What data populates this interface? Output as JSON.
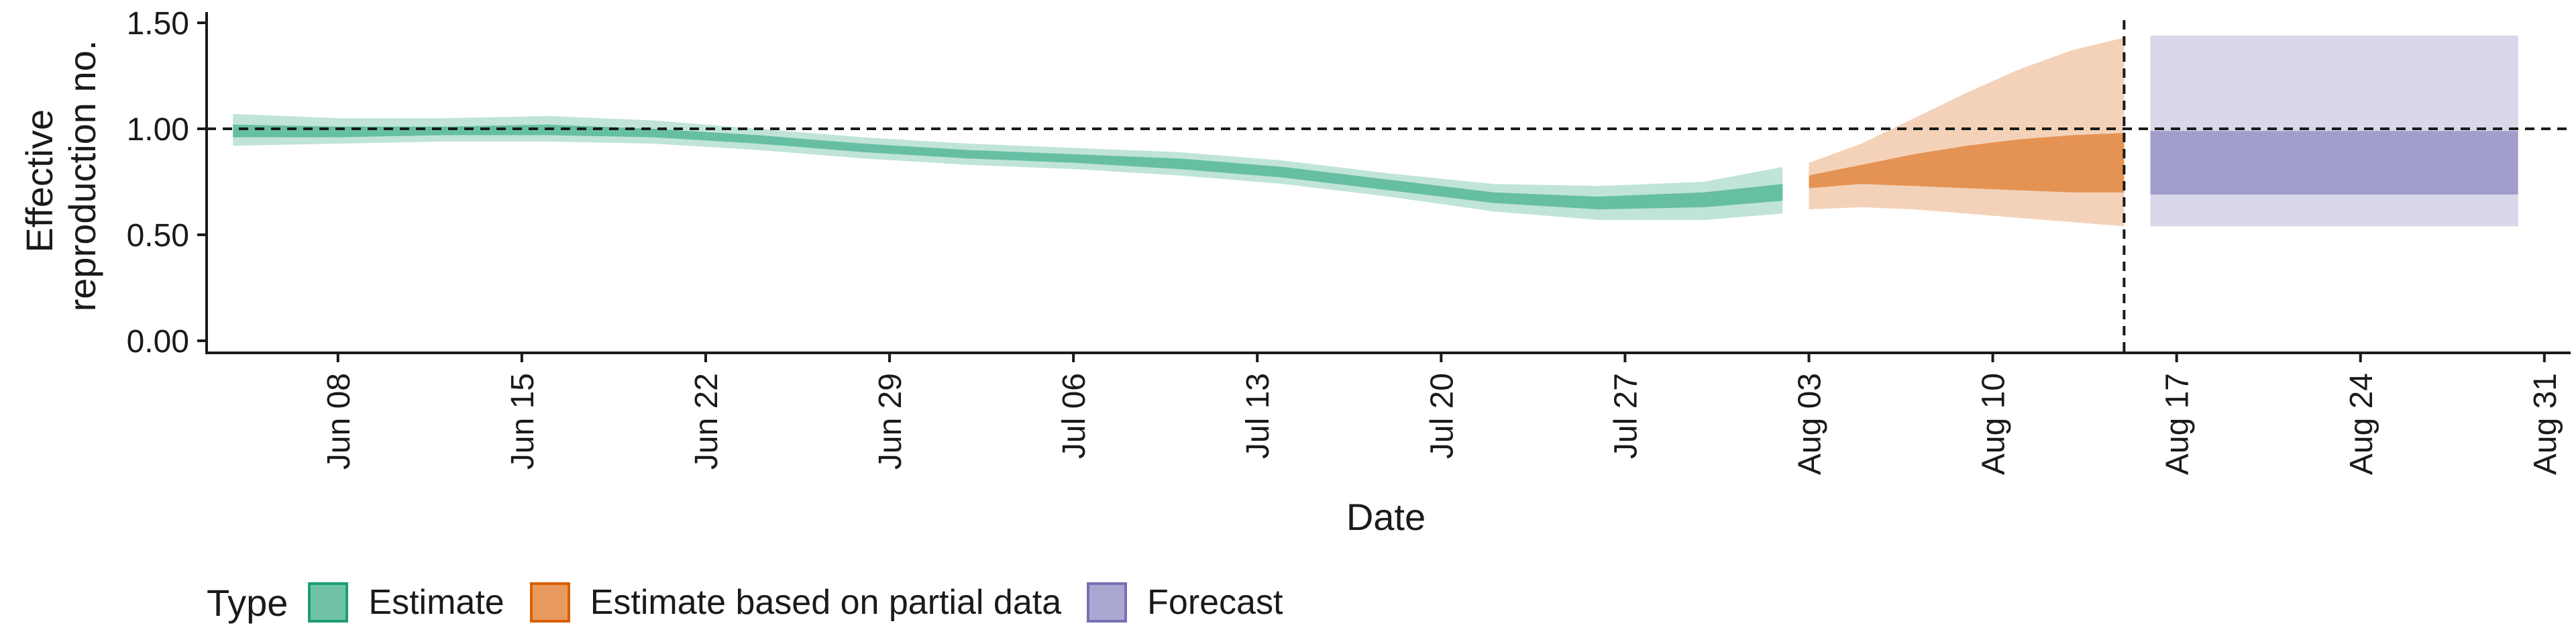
{
  "chart_data": {
    "type": "area",
    "xlabel": "Date",
    "ylabel_lines": [
      "Effective",
      "reproduction no."
    ],
    "ylim": [
      0.0,
      1.5
    ],
    "yticks": [
      0.0,
      0.5,
      1.0,
      1.5
    ],
    "ytick_labels": [
      "0.00",
      "0.50",
      "1.00",
      "1.50"
    ],
    "x_range": [
      "2020-06-03",
      "2020-09-01"
    ],
    "xticks": [
      "2020-06-08",
      "2020-06-15",
      "2020-06-22",
      "2020-06-29",
      "2020-07-06",
      "2020-07-13",
      "2020-07-20",
      "2020-07-27",
      "2020-08-03",
      "2020-08-10",
      "2020-08-17",
      "2020-08-24",
      "2020-08-31"
    ],
    "xtick_labels": [
      "Jun 08",
      "Jun 15",
      "Jun 22",
      "Jun 29",
      "Jul 06",
      "Jul 13",
      "Jul 20",
      "Jul 27",
      "Aug 03",
      "Aug 10",
      "Aug 17",
      "Aug 24",
      "Aug 31"
    ],
    "reference_hline": 1.0,
    "reference_vline": "2020-08-15",
    "legend_placement": "bottom",
    "series": [
      {
        "name": "Estimate",
        "fill_color": "#1b9e77",
        "x": [
          "2020-06-04",
          "2020-06-08",
          "2020-06-12",
          "2020-06-16",
          "2020-06-20",
          "2020-06-24",
          "2020-06-28",
          "2020-07-02",
          "2020-07-06",
          "2020-07-10",
          "2020-07-14",
          "2020-07-18",
          "2020-07-22",
          "2020-07-26",
          "2020-07-30",
          "2020-08-02"
        ],
        "outer_lower": [
          0.92,
          0.93,
          0.94,
          0.94,
          0.93,
          0.9,
          0.86,
          0.83,
          0.81,
          0.78,
          0.74,
          0.68,
          0.61,
          0.57,
          0.57,
          0.6
        ],
        "outer_upper": [
          1.07,
          1.05,
          1.05,
          1.06,
          1.04,
          1.0,
          0.96,
          0.93,
          0.91,
          0.89,
          0.85,
          0.79,
          0.74,
          0.73,
          0.75,
          0.82
        ],
        "inner_lower": [
          0.96,
          0.96,
          0.97,
          0.97,
          0.96,
          0.93,
          0.89,
          0.86,
          0.84,
          0.81,
          0.77,
          0.71,
          0.65,
          0.62,
          0.63,
          0.66
        ],
        "inner_upper": [
          1.02,
          1.01,
          1.01,
          1.02,
          1.0,
          0.97,
          0.93,
          0.9,
          0.88,
          0.86,
          0.82,
          0.76,
          0.7,
          0.68,
          0.7,
          0.74
        ]
      },
      {
        "name": "Estimate based on partial data",
        "fill_color": "#d95f02",
        "x": [
          "2020-08-03",
          "2020-08-05",
          "2020-08-07",
          "2020-08-09",
          "2020-08-11",
          "2020-08-13",
          "2020-08-15"
        ],
        "outer_lower": [
          0.62,
          0.63,
          0.62,
          0.6,
          0.58,
          0.56,
          0.54
        ],
        "outer_upper": [
          0.84,
          0.93,
          1.05,
          1.17,
          1.28,
          1.37,
          1.43
        ],
        "inner_lower": [
          0.72,
          0.74,
          0.73,
          0.72,
          0.71,
          0.7,
          0.7
        ],
        "inner_upper": [
          0.78,
          0.83,
          0.88,
          0.92,
          0.95,
          0.97,
          0.98
        ]
      },
      {
        "name": "Forecast",
        "fill_color": "#7570b3",
        "x": [
          "2020-08-16",
          "2020-08-30"
        ],
        "outer_lower": [
          0.54,
          0.54
        ],
        "outer_upper": [
          1.44,
          1.44
        ],
        "inner_lower": [
          0.69,
          0.69
        ],
        "inner_upper": [
          0.99,
          0.99
        ]
      }
    ]
  },
  "legend": {
    "title": "Type",
    "items": [
      {
        "label": "Estimate",
        "fill": "#71c3a8",
        "border": "#1b9e77"
      },
      {
        "label": "Estimate based on partial data",
        "fill": "#e89a5e",
        "border": "#d95f02"
      },
      {
        "label": "Forecast",
        "fill": "#aaa7d2",
        "border": "#7570b3"
      }
    ]
  }
}
